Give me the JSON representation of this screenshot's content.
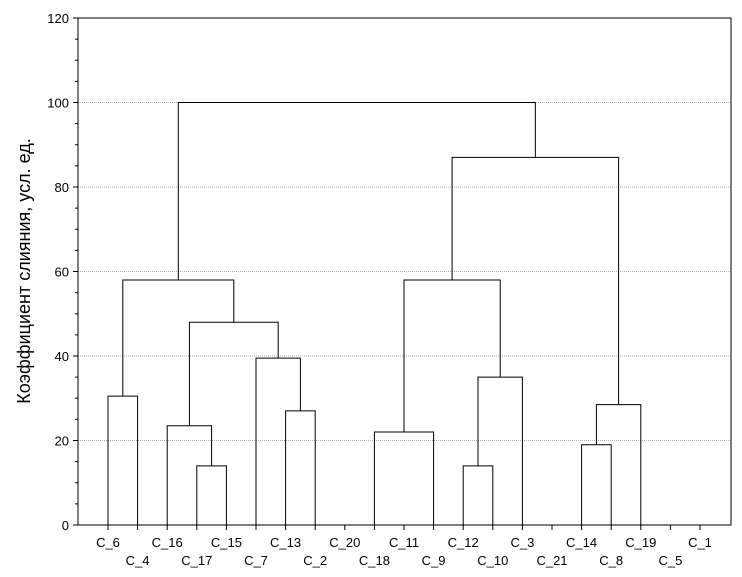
{
  "chart_data": {
    "type": "dendrogram",
    "title": "",
    "xlabel": "",
    "ylabel": "Коэффициент слияния, усл. ед.",
    "ylim": [
      0,
      120
    ],
    "y_ticks": [
      0,
      20,
      40,
      60,
      80,
      100,
      120
    ],
    "grid": true,
    "leaves": [
      "C_6",
      "C_4",
      "C_16",
      "C_17",
      "C_15",
      "C_7",
      "C_13",
      "C_2",
      "C_20",
      "C_18",
      "C_11",
      "C_9",
      "C_12",
      "C_10",
      "C_3",
      "C_21",
      "C_14",
      "C_8",
      "C_19",
      "C_5",
      "C_1"
    ],
    "merges": [
      {
        "left": "C_6",
        "right": "C_4",
        "height": 30.5
      },
      {
        "left": "C_17",
        "right": "C_15",
        "height": 14
      },
      {
        "left": "C_16",
        "right": "C_17+C_15",
        "height": 23.5
      },
      {
        "left": "C_13",
        "right": "C_2",
        "height": 27
      },
      {
        "left": "C_7",
        "right": "C_13+C_2",
        "height": 39.5
      },
      {
        "left": "C_16+C_17+C_15",
        "right": "C_7+C_13+C_2",
        "height": 48
      },
      {
        "left": "C_6+C_4",
        "right": "C_16..C_2",
        "height": 58
      },
      {
        "left": "C_18",
        "right": "C_9",
        "height": 22
      },
      {
        "left": "C_12",
        "right": "C_10",
        "height": 14
      },
      {
        "left": "C_12+C_10",
        "right": "C_3",
        "height": 35
      },
      {
        "left": "C_18+C_9",
        "right": "C_12+C_10+C_3",
        "height": 58
      },
      {
        "left": "C_14",
        "right": "C_8",
        "height": 19
      },
      {
        "left": "C_14+C_8",
        "right": "C_19",
        "height": 28.5
      },
      {
        "left": "C_18..C_3",
        "right": "C_14+C_8+C_19",
        "height": 87
      },
      {
        "left": "C_6..C_2",
        "right": "C_18..C_19",
        "height": 100
      }
    ]
  }
}
